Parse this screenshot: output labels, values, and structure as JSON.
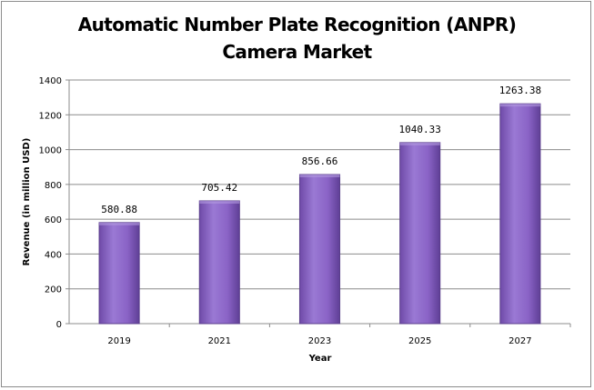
{
  "chart_data": {
    "type": "bar",
    "title_lines": [
      "Automatic Number Plate Recognition (ANPR)",
      "Camera Market"
    ],
    "categories": [
      "2019",
      "2021",
      "2023",
      "2025",
      "2027"
    ],
    "values": [
      580.88,
      705.42,
      856.66,
      1040.33,
      1263.38
    ],
    "value_labels": [
      "580.88",
      "705.42",
      "856.66",
      "1040.33",
      "1263.38"
    ],
    "xlabel": "Year",
    "ylabel": "Revenue (in million USD)",
    "ylim": [
      0,
      1400
    ],
    "yticks": [
      0,
      200,
      400,
      600,
      800,
      1000,
      1200,
      1400
    ],
    "grid": true,
    "legend": "none",
    "colors": {
      "bar": "#8a63c6",
      "bar_edge": "#5b3f8c",
      "bar_dark": "#5f3f96"
    }
  }
}
